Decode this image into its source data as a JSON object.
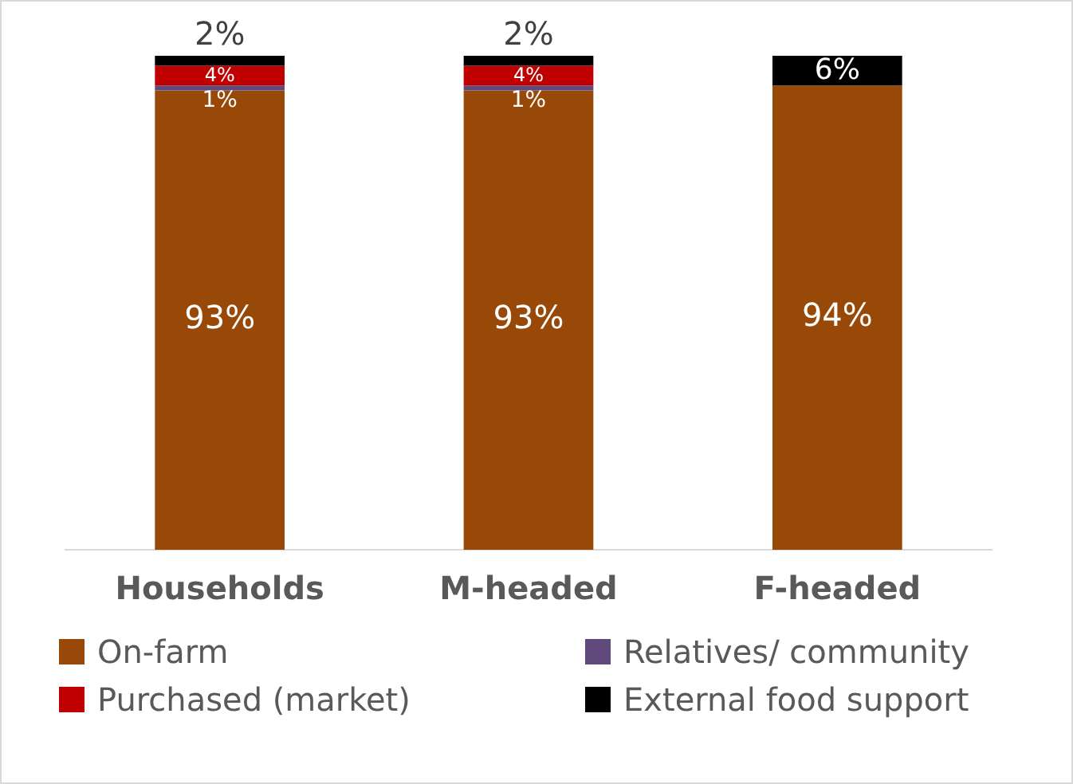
{
  "chart_data": {
    "type": "bar",
    "stacked": true,
    "categories": [
      "Households",
      "M-headed",
      "F-headed"
    ],
    "legend": "bottom",
    "grid": false,
    "ylim": [
      0,
      100
    ],
    "tick_labels": "x",
    "series": [
      {
        "name": "On-farm",
        "color": "#984807",
        "values": [
          93,
          93,
          94
        ],
        "value_labels": [
          "93%",
          "93%",
          "94%"
        ]
      },
      {
        "name": "Relatives/ community",
        "color": "#604a7b",
        "values": [
          1,
          1,
          null
        ],
        "value_labels": [
          "1%",
          "1%",
          null
        ]
      },
      {
        "name": "Purchased (market)",
        "color": "#c00000",
        "values": [
          4,
          4,
          null
        ],
        "value_labels": [
          "4%",
          "4%",
          null
        ]
      },
      {
        "name": "External food support",
        "color": "#000000",
        "values": [
          2,
          2,
          6
        ],
        "value_labels": [
          "2%",
          "2%",
          "6%"
        ]
      }
    ]
  }
}
